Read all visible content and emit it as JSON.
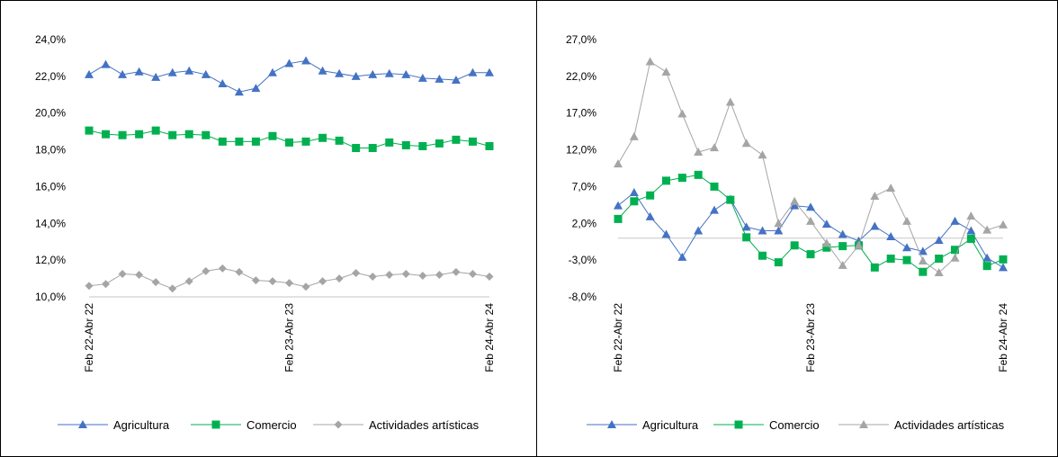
{
  "chart_data": [
    {
      "type": "line",
      "title": "",
      "xlabel": "",
      "ylabel": "",
      "ylim": [
        10,
        24
      ],
      "y_tick_step": 2,
      "y_tick_labels": [
        "10,0%",
        "12,0%",
        "14,0%",
        "16,0%",
        "18,0%",
        "20,0%",
        "22,0%",
        "24,0%"
      ],
      "x_tick_labels": [
        {
          "index": 0,
          "label": "Feb 22-Abr 22"
        },
        {
          "index": 12,
          "label": "Feb 23-Abr 23"
        },
        {
          "index": 24,
          "label": "Feb 24-Abr 24"
        }
      ],
      "grid": false,
      "legend": "bottom",
      "series": [
        {
          "name": "Agricultura",
          "color": "#4472C4",
          "marker": "triangle",
          "values": [
            22.1,
            22.65,
            22.1,
            22.25,
            21.95,
            22.2,
            22.3,
            22.1,
            21.6,
            21.15,
            21.35,
            22.2,
            22.7,
            22.85,
            22.3,
            22.15,
            22.0,
            22.1,
            22.15,
            22.1,
            21.9,
            21.85,
            21.8,
            22.2,
            22.2
          ]
        },
        {
          "name": "Comercio",
          "color": "#00B050",
          "marker": "square",
          "values": [
            19.05,
            18.85,
            18.8,
            18.85,
            19.05,
            18.8,
            18.85,
            18.8,
            18.45,
            18.45,
            18.45,
            18.75,
            18.4,
            18.45,
            18.65,
            18.5,
            18.1,
            18.1,
            18.4,
            18.25,
            18.2,
            18.35,
            18.55,
            18.45,
            18.2
          ]
        },
        {
          "name": "Actividades artísticas",
          "color": "#A5A5A5",
          "marker": "diamond",
          "values": [
            10.6,
            10.7,
            11.25,
            11.2,
            10.8,
            10.45,
            10.85,
            11.4,
            11.55,
            11.35,
            10.9,
            10.85,
            10.75,
            10.55,
            10.85,
            11.0,
            11.3,
            11.1,
            11.2,
            11.25,
            11.15,
            11.2,
            11.35,
            11.25,
            11.1
          ]
        }
      ]
    },
    {
      "type": "line",
      "title": "",
      "xlabel": "",
      "ylabel": "",
      "ylim": [
        -8,
        27
      ],
      "y_tick_step": 5,
      "y_tick_labels": [
        "-8,0%",
        "-3,0%",
        "2,0%",
        "7,0%",
        "12,0%",
        "17,0%",
        "22,0%",
        "27,0%"
      ],
      "x_tick_labels": [
        {
          "index": 0,
          "label": "Feb 22-Abr 22"
        },
        {
          "index": 12,
          "label": "Feb 23-Abr 23"
        },
        {
          "index": 24,
          "label": "Feb 24-Abr 24"
        }
      ],
      "grid": false,
      "zero_line": true,
      "legend": "bottom",
      "series": [
        {
          "name": "Agricultura",
          "color": "#4472C4",
          "marker": "triangle",
          "values": [
            4.4,
            6.2,
            2.9,
            0.5,
            -2.6,
            1.0,
            3.8,
            5.3,
            1.5,
            1.0,
            1.0,
            4.4,
            4.2,
            1.9,
            0.5,
            -0.4,
            1.6,
            0.2,
            -1.3,
            -1.8,
            -0.3,
            2.3,
            1.0,
            -2.7,
            -4.0
          ]
        },
        {
          "name": "Comercio",
          "color": "#00B050",
          "marker": "square",
          "values": [
            2.6,
            5.0,
            5.8,
            7.8,
            8.2,
            8.6,
            7.0,
            5.2,
            0.1,
            -2.4,
            -3.3,
            -1.0,
            -2.2,
            -1.3,
            -1.1,
            -1.0,
            -4.0,
            -2.8,
            -3.0,
            -4.6,
            -2.8,
            -1.6,
            -0.1,
            -3.8,
            -2.9
          ]
        },
        {
          "name": "Actividades artísticas",
          "color": "#A5A5A5",
          "marker": "triangle",
          "values": [
            10.1,
            13.8,
            24.0,
            22.6,
            16.9,
            11.7,
            12.3,
            18.5,
            12.9,
            11.3,
            2.0,
            5.0,
            2.3,
            -0.7,
            -3.7,
            -1.0,
            5.7,
            6.8,
            2.3,
            -3.1,
            -4.7,
            -2.7,
            3.0,
            1.1,
            1.8
          ]
        }
      ]
    }
  ]
}
